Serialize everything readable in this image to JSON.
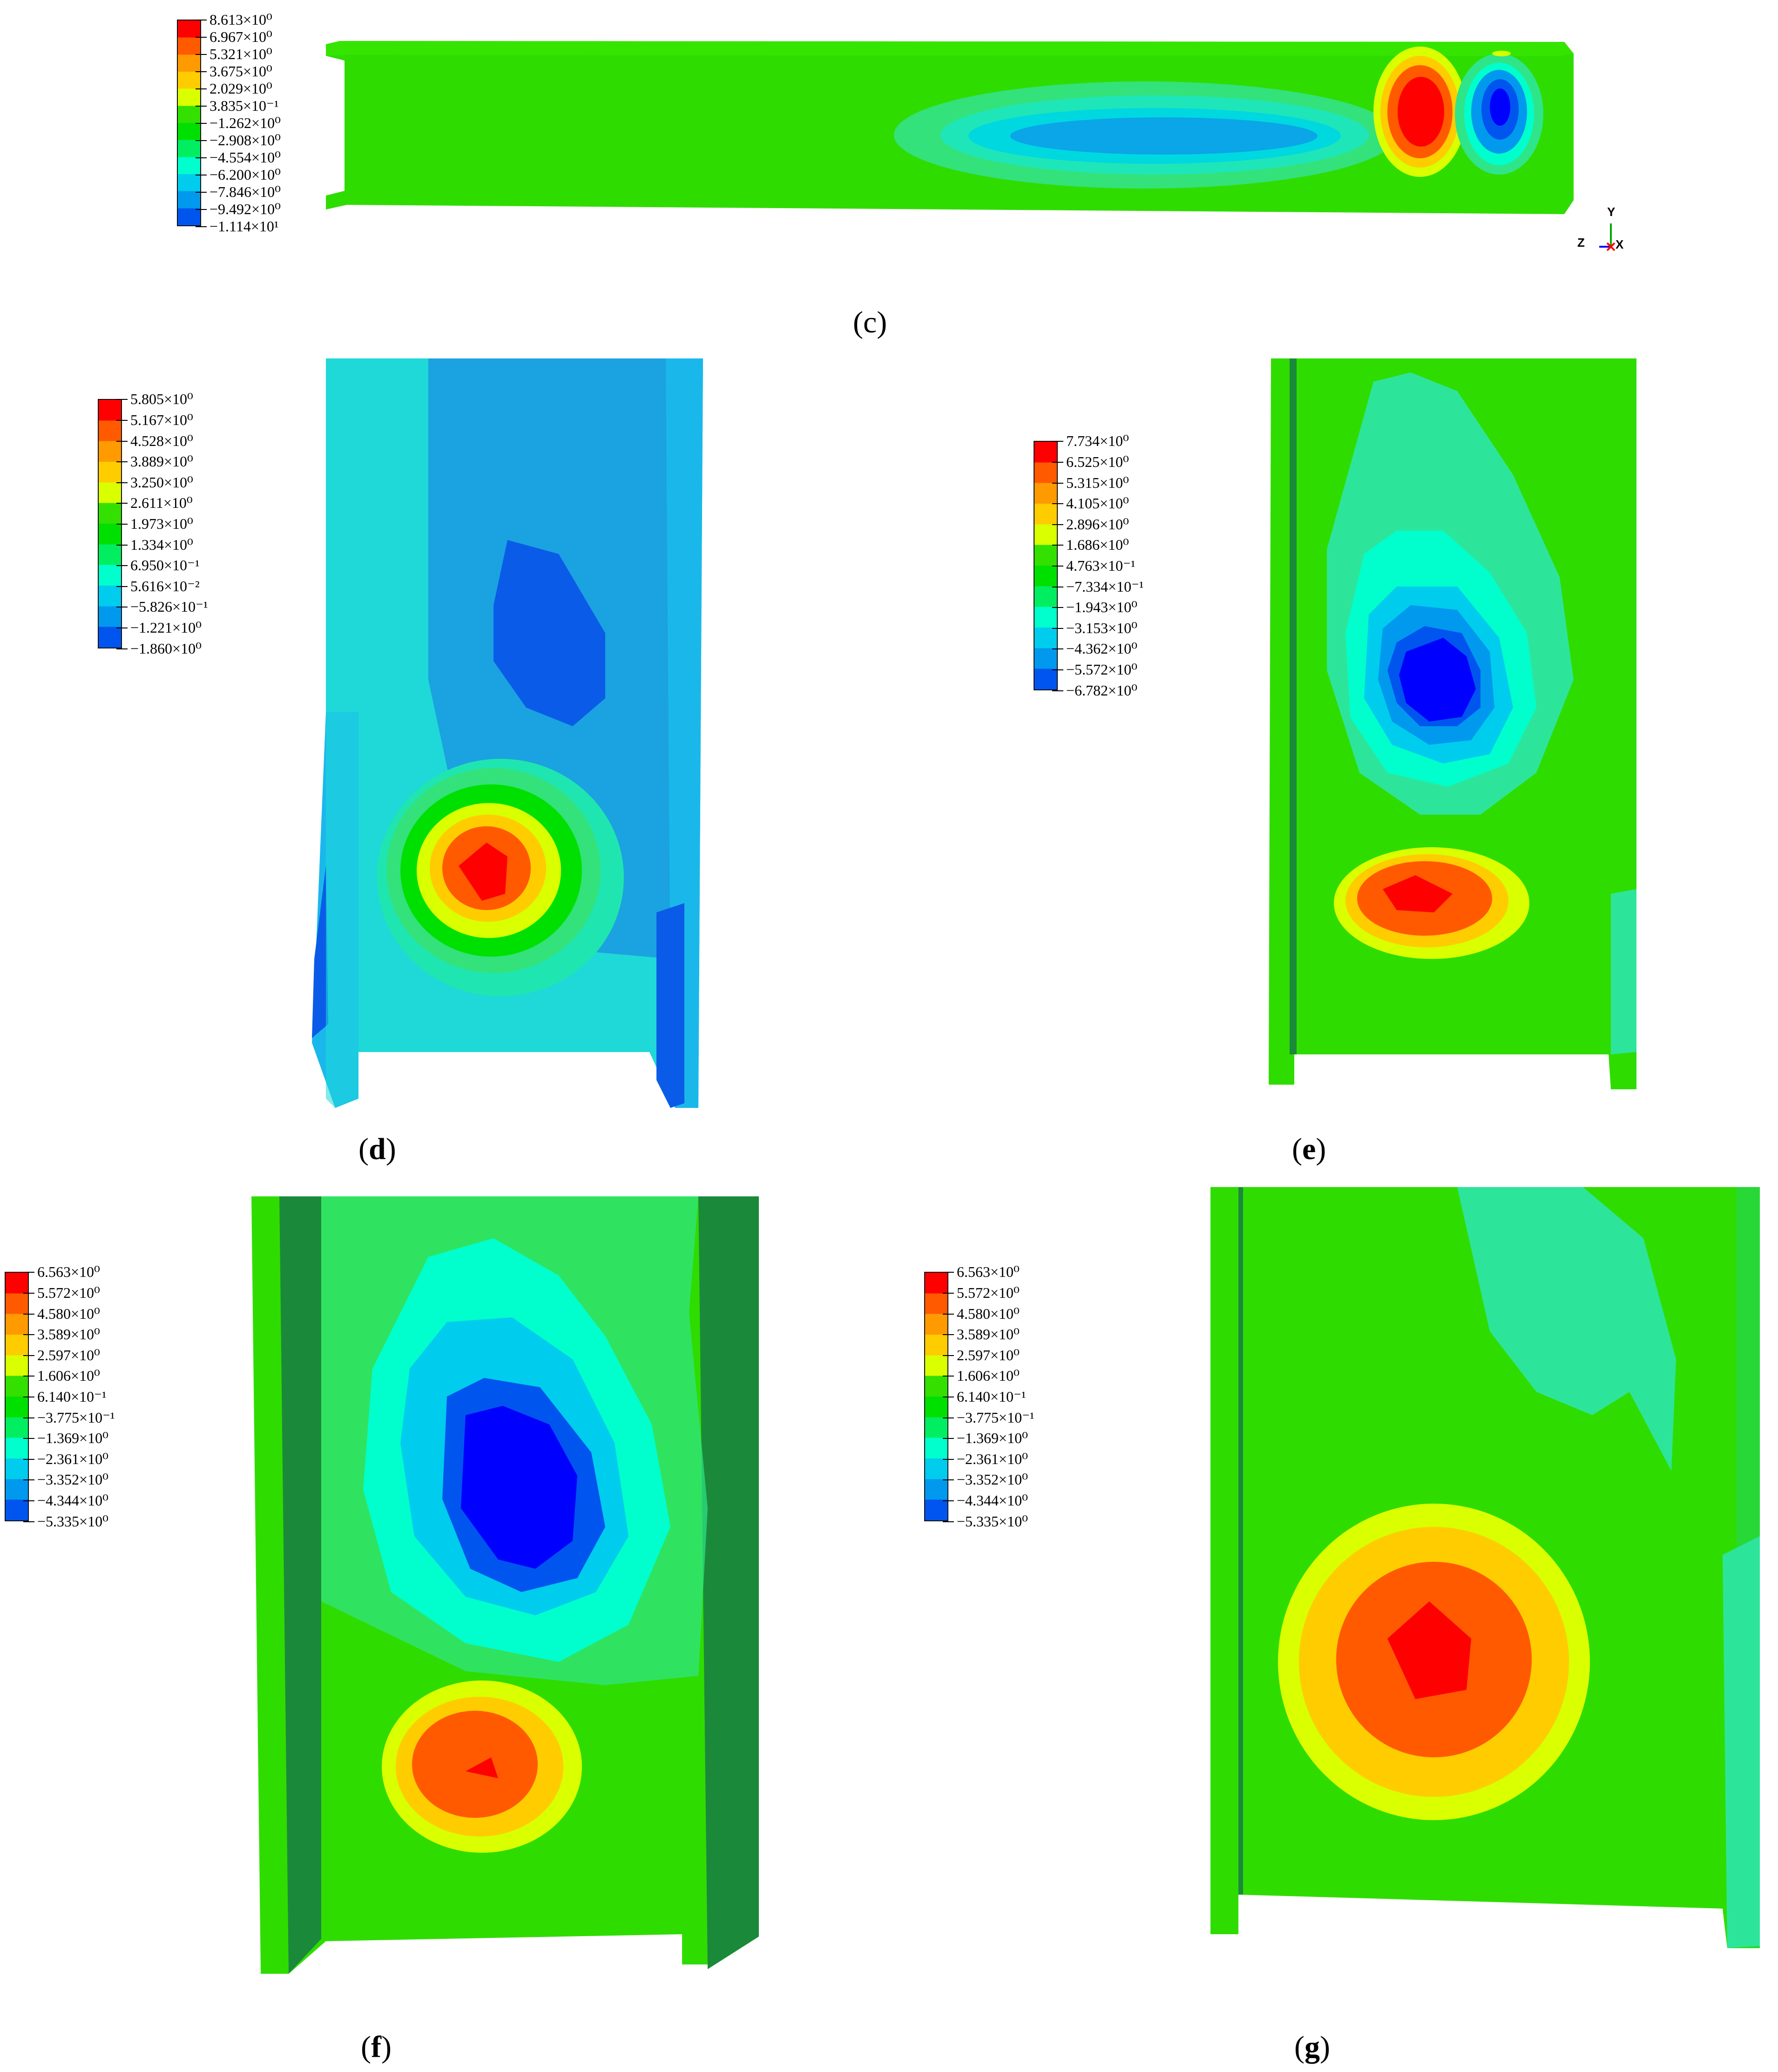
{
  "figure": {
    "panels": [
      {
        "id": "c",
        "caption_open": "(",
        "caption_letter": "c",
        "caption_close": ")",
        "legend_values": [
          "8.613×10⁰",
          "6.967×10⁰",
          "5.321×10⁰",
          "3.675×10⁰",
          "2.029×10⁰",
          "3.835×10⁻¹",
          "−1.262×10⁰",
          "−2.908×10⁰",
          "−4.554×10⁰",
          "−6.200×10⁰",
          "−7.846×10⁰",
          "−9.492×10⁰",
          "−1.114×10¹"
        ],
        "axis_triad": {
          "y": "Y",
          "z": "Z",
          "x": "X"
        }
      },
      {
        "id": "d",
        "caption_open": "(",
        "caption_letter": "d",
        "caption_close": ")",
        "legend_values": [
          "5.805×10⁰",
          "5.167×10⁰",
          "4.528×10⁰",
          "3.889×10⁰",
          "3.250×10⁰",
          "2.611×10⁰",
          "1.973×10⁰",
          "1.334×10⁰",
          "6.950×10⁻¹",
          "5.616×10⁻²",
          "−5.826×10⁻¹",
          "−1.221×10⁰",
          "−1.860×10⁰"
        ]
      },
      {
        "id": "e",
        "caption_open": "(",
        "caption_letter": "e",
        "caption_close": ")",
        "legend_values": [
          "7.734×10⁰",
          "6.525×10⁰",
          "5.315×10⁰",
          "4.105×10⁰",
          "2.896×10⁰",
          "1.686×10⁰",
          "4.763×10⁻¹",
          "−7.334×10⁻¹",
          "−1.943×10⁰",
          "−3.153×10⁰",
          "−4.362×10⁰",
          "−5.572×10⁰",
          "−6.782×10⁰"
        ]
      },
      {
        "id": "f",
        "caption_open": "(",
        "caption_letter": "f",
        "caption_close": ")",
        "legend_values": [
          "6.563×10⁰",
          "5.572×10⁰",
          "4.580×10⁰",
          "3.589×10⁰",
          "2.597×10⁰",
          "1.606×10⁰",
          "6.140×10⁻¹",
          "−3.775×10⁻¹",
          "−1.369×10⁰",
          "−2.361×10⁰",
          "−3.352×10⁰",
          "−4.344×10⁰",
          "−5.335×10⁰"
        ]
      },
      {
        "id": "g",
        "caption_open": "(",
        "caption_letter": "g",
        "caption_close": ")",
        "legend_values": [
          "6.563×10⁰",
          "5.572×10⁰",
          "4.580×10⁰",
          "3.589×10⁰",
          "2.597×10⁰",
          "1.606×10⁰",
          "6.140×10⁻¹",
          "−3.775×10⁻¹",
          "−1.369×10⁰",
          "−2.361×10⁰",
          "−3.352×10⁰",
          "−4.344×10⁰",
          "−5.335×10⁰"
        ]
      }
    ],
    "colormap": [
      "#ff0000",
      "#ff5a00",
      "#ff9a00",
      "#ffcc00",
      "#d9ff00",
      "#33e000",
      "#00e000",
      "#00ee60",
      "#00ffcc",
      "#00ccee",
      "#0099ee",
      "#0055ee",
      "#0000ff"
    ]
  }
}
